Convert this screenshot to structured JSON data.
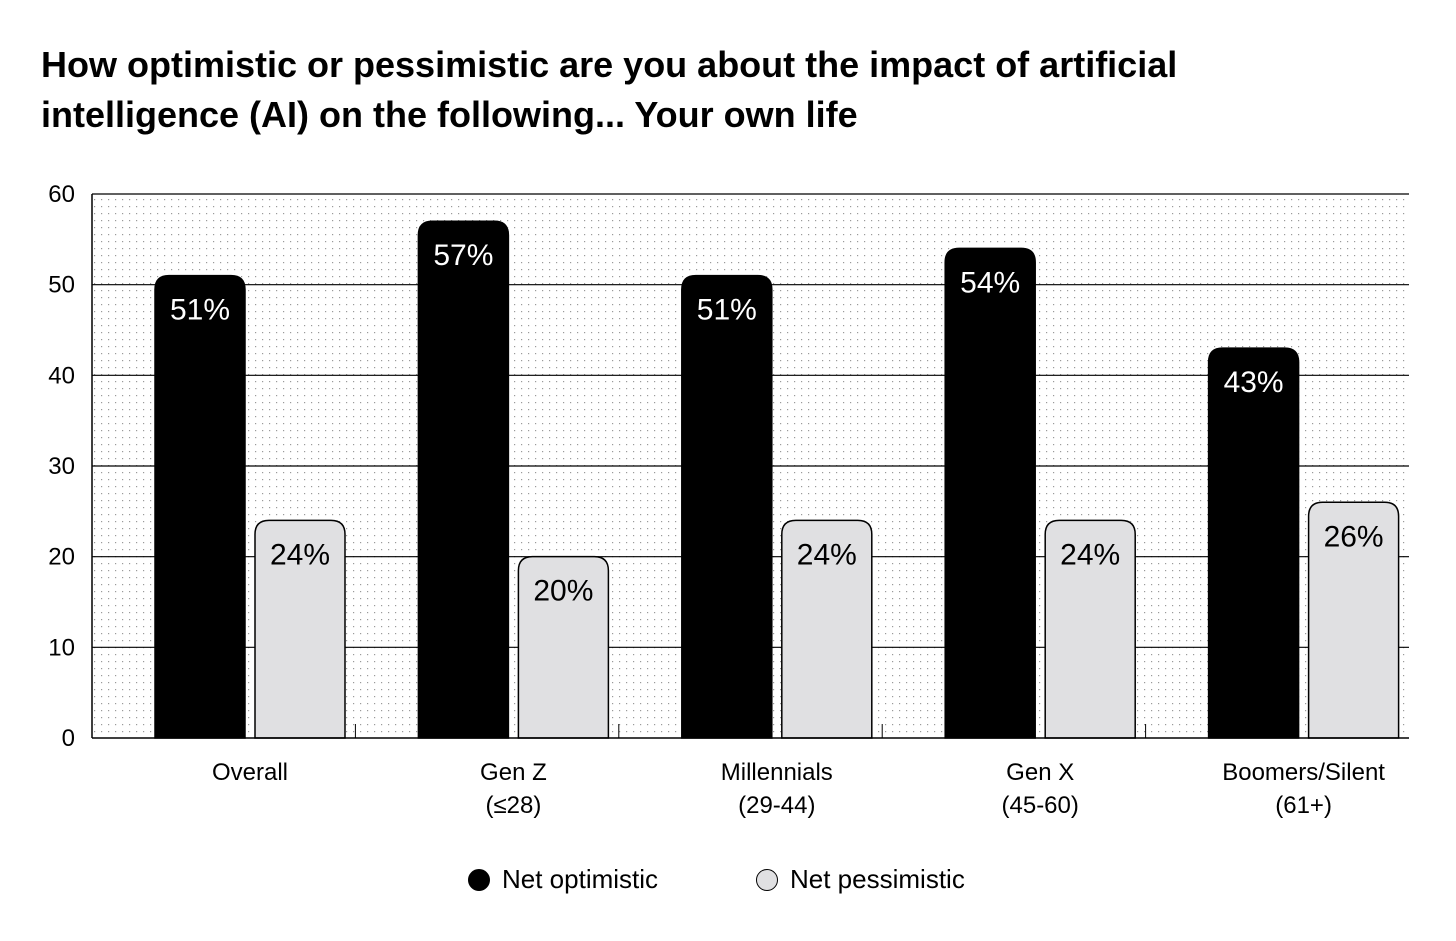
{
  "chart_data": {
    "type": "bar",
    "title_lines": [
      "How optimistic or pessimistic are you about the impact of artificial",
      "intelligence (AI) on the following... Your own life"
    ],
    "categories": [
      [
        "Overall"
      ],
      [
        "Gen Z",
        "(≤28)"
      ],
      [
        "Millennials",
        "(29-44)"
      ],
      [
        "Gen X",
        "(45-60)"
      ],
      [
        "Boomers/Silent",
        "(61+)"
      ]
    ],
    "series": [
      {
        "name": "Net optimistic",
        "color": "#000000",
        "label_color": "#ffffff",
        "values": [
          51,
          57,
          51,
          54,
          43
        ]
      },
      {
        "name": "Net pessimistic",
        "color": "#e0e0e2",
        "label_color": "#000000",
        "values": [
          24,
          20,
          24,
          24,
          26
        ]
      }
    ],
    "value_suffix": "%",
    "yticks": [
      0,
      10,
      20,
      30,
      40,
      50,
      60
    ],
    "ylim": [
      0,
      60
    ],
    "xlabel": "",
    "ylabel": "",
    "grid": true,
    "legend_position": "bottom-center"
  }
}
